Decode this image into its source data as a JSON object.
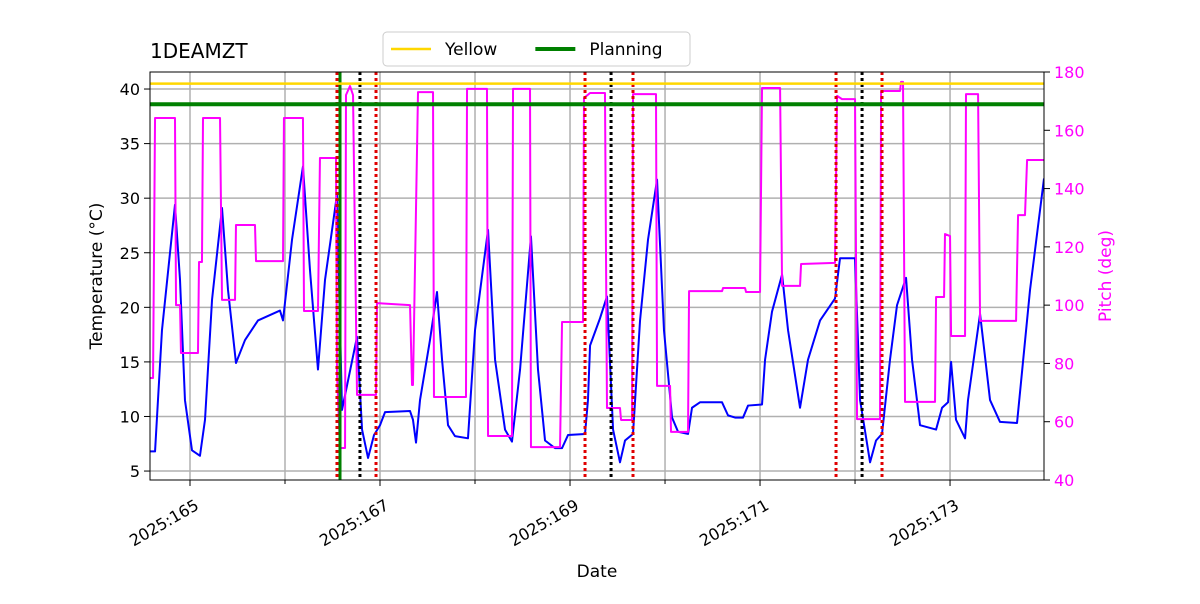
{
  "chart_data": {
    "type": "line",
    "title": "1DEAMZT",
    "xlabel": "Date",
    "ylabel": "Temperature (°C)",
    "y2label": "Pitch (deg)",
    "xlim": [
      164.579,
      173.989
    ],
    "ylim": [
      4.18,
      41.56
    ],
    "y2lim": [
      40,
      180
    ],
    "xticks": [
      {
        "value": 165,
        "label": "2025:165"
      },
      {
        "value": 167,
        "label": "2025:167"
      },
      {
        "value": 169,
        "label": "2025:169"
      },
      {
        "value": 171,
        "label": "2025:171"
      },
      {
        "value": 173,
        "label": "2025:173"
      }
    ],
    "xminorticks": [
      166,
      168,
      170,
      172
    ],
    "yticks": [
      5,
      10,
      15,
      20,
      25,
      30,
      35,
      40
    ],
    "y2ticks": [
      40,
      60,
      80,
      100,
      120,
      140,
      160,
      180
    ],
    "grid": true,
    "legend": "upper center",
    "y2color": "#ff00ff",
    "hlines": [
      {
        "name": "Yellow",
        "color": "#ffd700",
        "y": 40.5
      },
      {
        "name": "Planning",
        "color": "#008000",
        "y": 38.6
      }
    ],
    "vlines": [
      {
        "x": 166.547,
        "color": "#e00000",
        "style": "dotted"
      },
      {
        "x": 166.958,
        "color": "#e00000",
        "style": "dotted"
      },
      {
        "x": 169.158,
        "color": "#e00000",
        "style": "dotted"
      },
      {
        "x": 169.663,
        "color": "#e00000",
        "style": "dotted"
      },
      {
        "x": 171.8,
        "color": "#e00000",
        "style": "dotted"
      },
      {
        "x": 172.284,
        "color": "#e00000",
        "style": "dotted"
      },
      {
        "x": 166.789,
        "color": "#000000",
        "style": "dotted"
      },
      {
        "x": 169.432,
        "color": "#000000",
        "style": "dotted"
      },
      {
        "x": 172.074,
        "color": "#000000",
        "style": "dotted"
      },
      {
        "x": 166.579,
        "color": "#008000",
        "style": "solid"
      }
    ],
    "series": [
      {
        "color": "#0000ff",
        "axis": "y",
        "x": [
          164.579,
          164.632,
          164.705,
          164.842,
          164.895,
          164.947,
          165.021,
          165.105,
          165.158,
          165.232,
          165.337,
          165.4,
          165.484,
          165.579,
          165.716,
          165.947,
          165.979,
          166.074,
          166.189,
          166.263,
          166.347,
          166.421,
          166.547,
          166.6,
          166.758,
          166.811,
          166.874,
          166.937,
          167,
          167.053,
          167.316,
          167.347,
          167.379,
          167.421,
          167.526,
          167.6,
          167.653,
          167.716,
          167.789,
          167.926,
          168,
          168.137,
          168.211,
          168.316,
          168.389,
          168.474,
          168.589,
          168.663,
          168.737,
          168.842,
          168.916,
          168.979,
          169.158,
          169.189,
          169.211,
          169.316,
          169.389,
          169.453,
          169.526,
          169.579,
          169.663,
          169.737,
          169.821,
          169.916,
          169.989,
          170.074,
          170.137,
          170.242,
          170.284,
          170.368,
          170.6,
          170.663,
          170.737,
          170.821,
          170.874,
          171.021,
          171.053,
          171.126,
          171.232,
          171.295,
          171.421,
          171.505,
          171.632,
          171.789,
          171.842,
          172,
          172.053,
          172.158,
          172.221,
          172.284,
          172.368,
          172.442,
          172.537,
          172.6,
          172.684,
          172.853,
          172.916,
          172.979,
          173.011,
          173.063,
          173.158,
          173.189,
          173.316,
          173.421,
          173.526,
          173.705,
          173.842,
          173.989
        ],
        "values": [
          6.8,
          6.8,
          17.9,
          29.4,
          22.5,
          11.5,
          6.9,
          6.4,
          9.7,
          20.7,
          29.1,
          21.6,
          14.9,
          17.0,
          18.8,
          19.7,
          18.8,
          26.2,
          32.9,
          23.4,
          14.3,
          22.5,
          30.3,
          10.6,
          17.3,
          8.8,
          6.2,
          8.3,
          9.2,
          10.4,
          10.5,
          9.7,
          7.6,
          11.5,
          17.0,
          21.4,
          15.2,
          9.2,
          8.2,
          8.0,
          17.9,
          27.1,
          15.2,
          8.8,
          7.7,
          14.3,
          26.5,
          14.3,
          7.8,
          7.1,
          7.1,
          8.3,
          8.4,
          11.5,
          16.5,
          19.0,
          21.0,
          8.8,
          5.8,
          7.8,
          8.4,
          18.8,
          26.2,
          31.7,
          17.9,
          9.9,
          8.6,
          8.4,
          10.8,
          11.3,
          11.3,
          10.1,
          9.9,
          9.9,
          11.0,
          11.1,
          15.2,
          19.6,
          23.0,
          17.9,
          10.8,
          15.2,
          18.8,
          20.8,
          24.5,
          24.5,
          11.5,
          5.8,
          7.8,
          8.4,
          15.2,
          20.2,
          22.7,
          15.2,
          9.2,
          8.8,
          10.8,
          11.3,
          15.0,
          9.7,
          8.0,
          11.5,
          19.4,
          11.5,
          9.5,
          9.4,
          21.6,
          31.8
        ]
      },
      {
        "color": "#ff00ff",
        "axis": "y2",
        "x": [
          164.579,
          164.611,
          164.632,
          164.842,
          164.853,
          164.895,
          164.905,
          165.084,
          165.095,
          165.126,
          165.137,
          165.316,
          165.337,
          165.474,
          165.484,
          165.684,
          165.695,
          165.979,
          165.989,
          166.189,
          166.2,
          166.347,
          166.368,
          166.537,
          166.547,
          166.579,
          166.632,
          166.642,
          166.684,
          166.716,
          166.758,
          166.958,
          166.968,
          167.316,
          167.337,
          167.347,
          167.4,
          167.558,
          167.568,
          167.905,
          167.916,
          168.126,
          168.137,
          168.389,
          168.4,
          168.579,
          168.589,
          168.895,
          168.916,
          169.137,
          169.147,
          169.211,
          169.368,
          169.389,
          169.526,
          169.537,
          169.653,
          169.663,
          169.905,
          169.916,
          170.053,
          170.063,
          170.242,
          170.253,
          170.6,
          170.611,
          170.842,
          170.853,
          171,
          171.021,
          171.211,
          171.232,
          171.421,
          171.432,
          171.789,
          171.811,
          171.863,
          172,
          172.021,
          172.263,
          172.274,
          172.474,
          172.484,
          172.505,
          172.526,
          172.842,
          172.853,
          172.937,
          172.947,
          173,
          173.011,
          173.158,
          173.168,
          173.295,
          173.316,
          173.695,
          173.716,
          173.789,
          173.811,
          173.989
        ],
        "values": [
          75,
          75,
          164.2,
          164.2,
          100,
          100,
          83.6,
          83.6,
          114.8,
          114.8,
          164.2,
          164.2,
          101.8,
          101.8,
          127.5,
          127.5,
          115.1,
          115.1,
          164.2,
          164.2,
          98,
          98,
          150.5,
          150.5,
          76.7,
          51,
          51,
          172.1,
          175.2,
          172.1,
          69.2,
          69.2,
          100.7,
          100,
          72.6,
          72.6,
          173.1,
          173.1,
          68.5,
          68.5,
          174.2,
          174.2,
          55.1,
          55.1,
          174.2,
          174.2,
          51.3,
          51.3,
          94.2,
          94.2,
          171.1,
          172.8,
          172.8,
          64.7,
          64.7,
          60.6,
          60.6,
          172.4,
          172.4,
          72.3,
          72.3,
          56.5,
          56.5,
          104.8,
          104.8,
          105.9,
          105.9,
          104.5,
          104.5,
          174.5,
          174.5,
          106.6,
          106.6,
          114.1,
          114.5,
          171.8,
          170.7,
          170.7,
          60.9,
          60.9,
          173.5,
          173.5,
          176.6,
          176.6,
          66.8,
          66.8,
          102.8,
          102.8,
          124.4,
          123.7,
          89.4,
          89.4,
          172.4,
          172.4,
          94.6,
          94.6,
          130.9,
          130.9,
          149.8,
          149.8
        ]
      }
    ]
  }
}
